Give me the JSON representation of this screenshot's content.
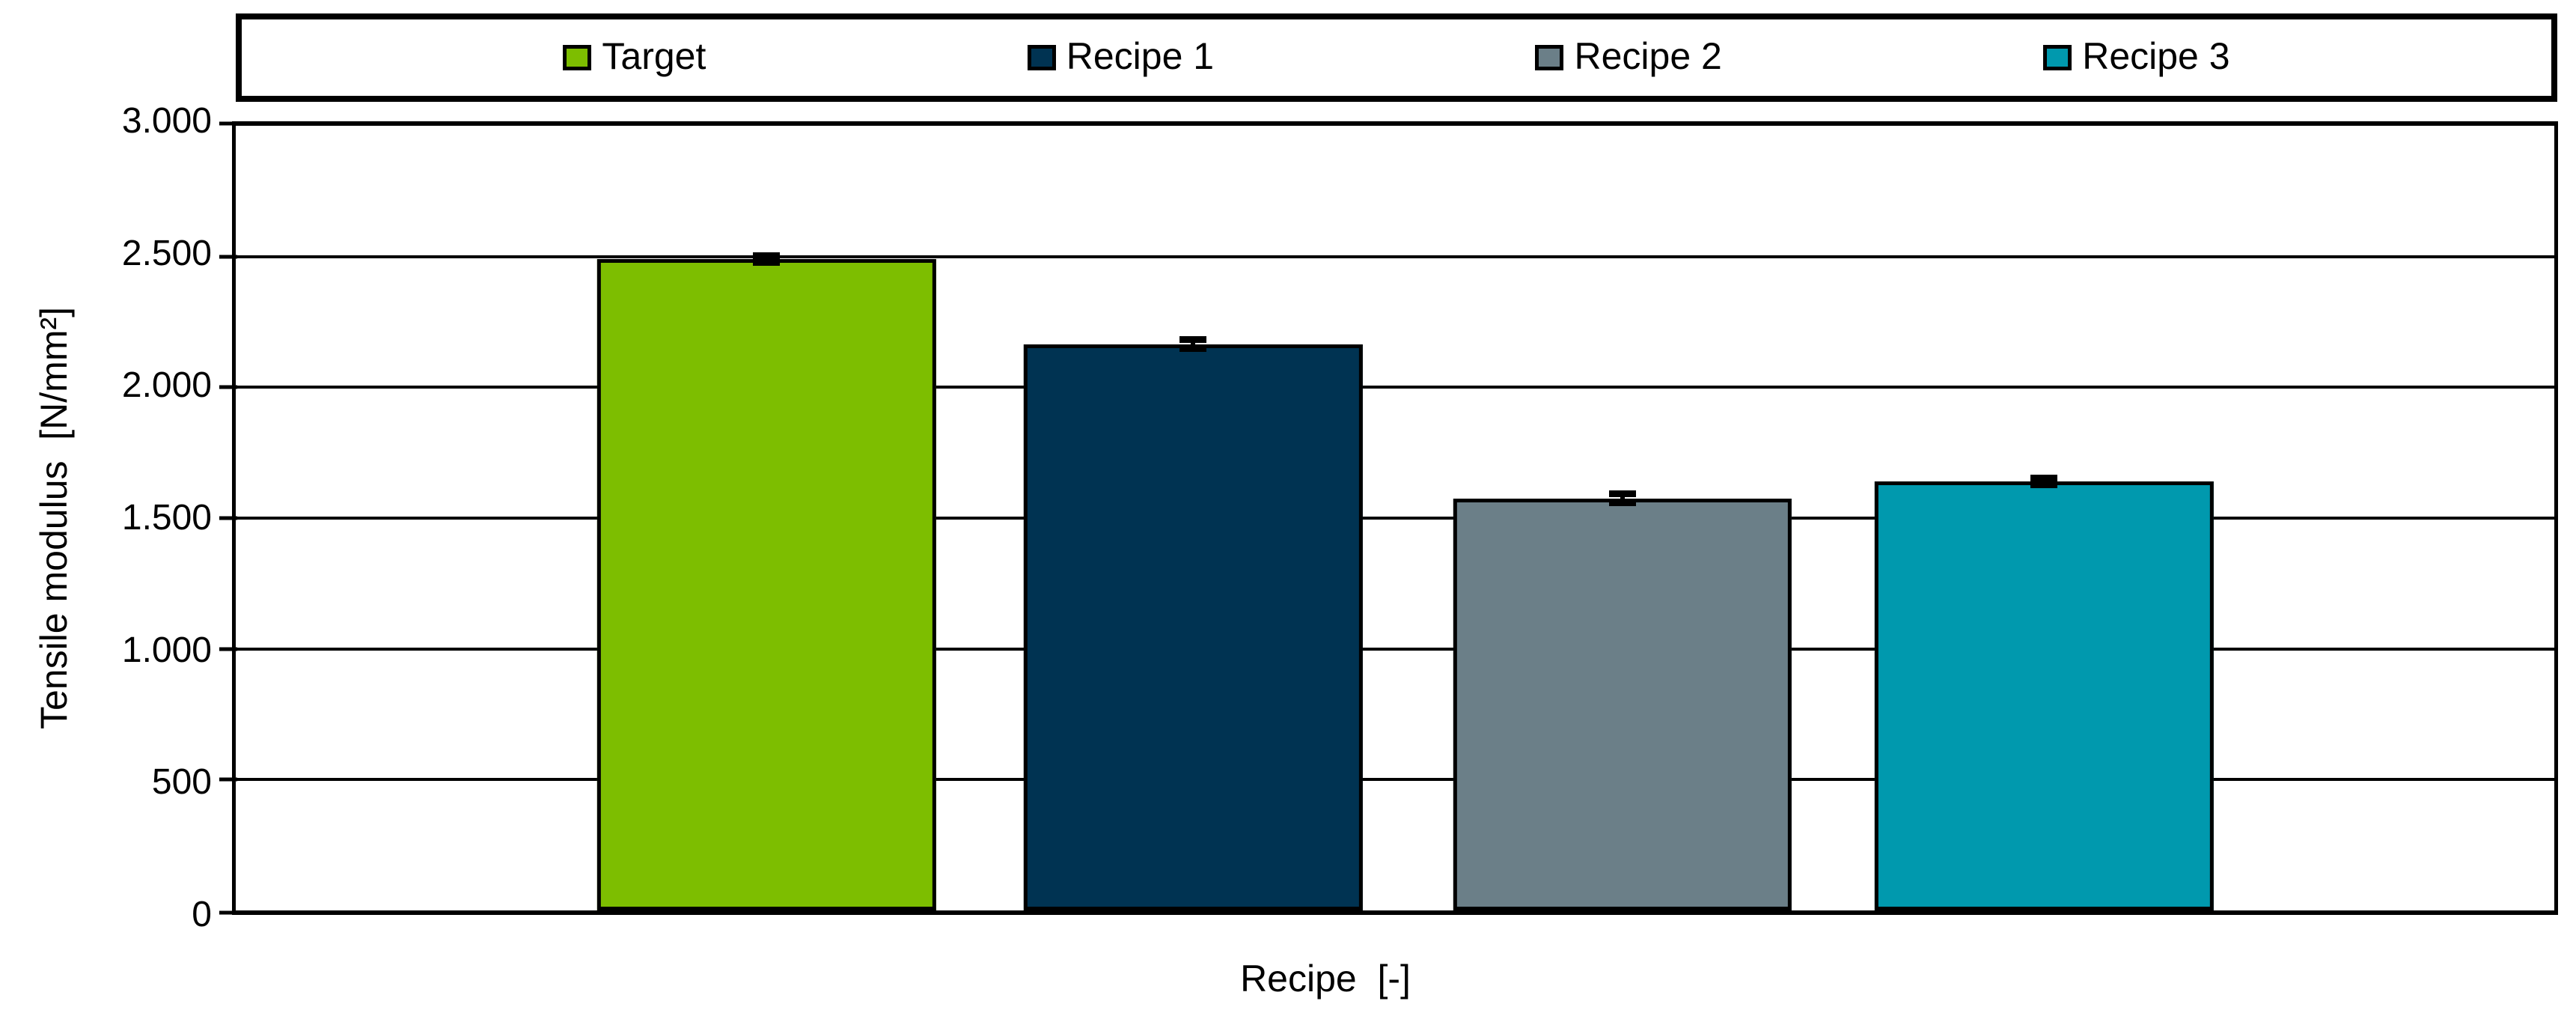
{
  "chart_data": {
    "type": "bar",
    "categories": [
      "Target",
      "Recipe 1",
      "Recipe 2",
      "Recipe 3"
    ],
    "values": [
      2490,
      2165,
      1575,
      1640
    ],
    "error_bars": [
      25,
      30,
      30,
      25
    ],
    "bar_colors": [
      "#7DBE00",
      "#003352",
      "#6B7F88",
      "#0099AE"
    ],
    "title": "",
    "xlabel": "Recipe  [-]",
    "ylabel": "Tensile modulus  [N/mm²]",
    "ylim": [
      0,
      3000
    ],
    "yticks": [
      {
        "value": 0,
        "label": "0"
      },
      {
        "value": 500,
        "label": "500"
      },
      {
        "value": 1000,
        "label": "1.000"
      },
      {
        "value": 1500,
        "label": "1.500"
      },
      {
        "value": 2000,
        "label": "2.000"
      },
      {
        "value": 2500,
        "label": "2.500"
      },
      {
        "value": 3000,
        "label": "3.000"
      }
    ],
    "grid": "horizontal",
    "legend": {
      "position": "top",
      "boxed": true,
      "entries": [
        "Target",
        "Recipe 1",
        "Recipe 2",
        "Recipe 3"
      ]
    },
    "number_format": "thousands-dot"
  }
}
